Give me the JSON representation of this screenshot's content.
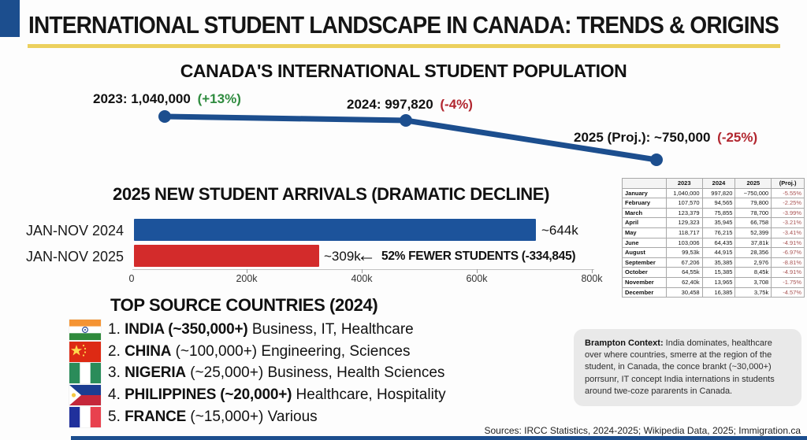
{
  "header": {
    "title": "INTERNATIONAL STUDENT LANDSCAPE IN CANADA: TRENDS & ORIGINS"
  },
  "colors": {
    "navy": "#1c4e8e",
    "bar_blue": "#1c539b",
    "bar_red": "#d32b2b",
    "green_change": "#2e8b3e",
    "red_change": "#b22730",
    "yellow_rule": "#ecd05e",
    "table_proj_text": "#a85252",
    "context_box_bg": "#e9e9e9"
  },
  "population_chart": {
    "title": "CANADA'S INTERNATIONAL STUDENT POPULATION",
    "points": [
      {
        "label": "2023: 1,040,000",
        "change": "(+13%)"
      },
      {
        "label": "2024: 997,820",
        "change": "(-4%)"
      },
      {
        "label": "2025 (Proj.): ~750,000",
        "change": "(-25%)"
      }
    ]
  },
  "arrivals_chart": {
    "title": "2025 NEW STUDENT ARRIVALS (DRAMATIC DECLINE)",
    "bars": [
      {
        "label": "JAN-NOV 2024",
        "value_label": "~644k"
      },
      {
        "label": "JAN-NOV 2025",
        "value_label": "~309k"
      }
    ],
    "arrow": "←",
    "annotation": "52% FEWER STUDENTS (-334,845)",
    "x_ticks": [
      "0",
      "200k",
      "400k",
      "600k",
      "800k"
    ]
  },
  "chart_data": [
    {
      "type": "line",
      "title": "CANADA'S INTERNATIONAL STUDENT POPULATION",
      "x": [
        "2023",
        "2024",
        "2025 (Proj.)"
      ],
      "values": [
        1040000,
        997820,
        750000
      ],
      "point_labels": [
        "2023: 1,040,000 (+13%)",
        "2024: 997,820 (-4%)",
        "2025 (Proj.): ~750,000 (-25%)"
      ],
      "annotations": [
        "+13%",
        "-4%",
        "-25%"
      ],
      "line_color": "#1c4e8e",
      "grid": false,
      "legend": "none"
    },
    {
      "type": "bar",
      "title": "2025 NEW STUDENT ARRIVALS (DRAMATIC DECLINE)",
      "categories": [
        "JAN-NOV 2024",
        "JAN-NOV 2025"
      ],
      "values": [
        644000,
        309000
      ],
      "value_labels": [
        "~644k",
        "~309k"
      ],
      "bar_colors": [
        "#1c539b",
        "#d32b2b"
      ],
      "orientation": "horizontal",
      "xlim": [
        0,
        800000
      ],
      "x_tick_labels": [
        "0",
        "200k",
        "400k",
        "600k",
        "800k"
      ],
      "annotation": "52% FEWER STUDENTS (-334,845)"
    },
    {
      "type": "table",
      "headers": [
        "",
        "2023",
        "2024",
        "2025",
        "(Proj.)"
      ],
      "rows": [
        [
          "January",
          "1,040,000",
          "997,820",
          "~750,000",
          "-5.55%"
        ],
        [
          "February",
          "107,570",
          "94,565",
          "79,800",
          "-2.25%"
        ],
        [
          "March",
          "123,379",
          "75,855",
          "78,700",
          "-3.99%"
        ],
        [
          "April",
          "129,323",
          "35,945",
          "66,758",
          "-3.21%"
        ],
        [
          "May",
          "118,717",
          "76,215",
          "52,399",
          "-3.41%"
        ],
        [
          "June",
          "103,006",
          "64,435",
          "37,81k",
          "-4.91%"
        ],
        [
          "August",
          "99,53k",
          "44,915",
          "28,356",
          "-6.97%"
        ],
        [
          "September",
          "67,206",
          "35,385",
          "2,976",
          "-8.81%"
        ],
        [
          "October",
          "64,55k",
          "15,385",
          "8,45k",
          "-4.91%"
        ],
        [
          "November",
          "62,40k",
          "13,965",
          "3,708",
          "-1.75%"
        ],
        [
          "December",
          "30,458",
          "16,385",
          "3,75k",
          "-4.57%"
        ]
      ]
    }
  ],
  "monthly_table": {
    "headers": [
      "",
      "2023",
      "2024",
      "2025",
      "(Proj.)"
    ],
    "rows": [
      {
        "month": "January",
        "y2023": "1,040,000",
        "y2024": "997,820",
        "y2025": "~750,000",
        "proj": "-5.55%"
      },
      {
        "month": "February",
        "y2023": "107,570",
        "y2024": "94,565",
        "y2025": "79,800",
        "proj": "-2.25%"
      },
      {
        "month": "March",
        "y2023": "123,379",
        "y2024": "75,855",
        "y2025": "78,700",
        "proj": "-3.99%"
      },
      {
        "month": "April",
        "y2023": "129,323",
        "y2024": "35,945",
        "y2025": "66,758",
        "proj": "-3.21%"
      },
      {
        "month": "May",
        "y2023": "118,717",
        "y2024": "76,215",
        "y2025": "52,399",
        "proj": "-3.41%"
      },
      {
        "month": "June",
        "y2023": "103,006",
        "y2024": "64,435",
        "y2025": "37,81k",
        "proj": "-4.91%"
      },
      {
        "month": "August",
        "y2023": "99,53k",
        "y2024": "44,915",
        "y2025": "28,356",
        "proj": "-6.97%"
      },
      {
        "month": "September",
        "y2023": "67,206",
        "y2024": "35,385",
        "y2025": "2,976",
        "proj": "-8.81%"
      },
      {
        "month": "October",
        "y2023": "64,55k",
        "y2024": "15,385",
        "y2025": "8,45k",
        "proj": "-4.91%"
      },
      {
        "month": "November",
        "y2023": "62,40k",
        "y2024": "13,965",
        "y2025": "3,708",
        "proj": "-1.75%"
      },
      {
        "month": "December",
        "y2023": "30,458",
        "y2024": "16,385",
        "y2025": "3,75k",
        "proj": "-4.57%"
      }
    ]
  },
  "top_countries": {
    "title": "TOP SOURCE COUNTRIES (2024)",
    "items": [
      {
        "rank": "1.",
        "bold": "INDIA (~350,000+)",
        "rest": "Business, IT, Healthcare",
        "flag": "india-flag"
      },
      {
        "rank": "2.",
        "bold": "CHINA",
        "rest": "(~100,000+) Engineering, Sciences",
        "flag": "china-flag"
      },
      {
        "rank": "3.",
        "bold": "NIGERIA",
        "rest": "(~25,000+) Business, Health Sciences",
        "flag": "nigeria-flag"
      },
      {
        "rank": "4.",
        "bold": "PHILIPPINES (~20,000+)",
        "rest": "Healthcare, Hospitality",
        "flag": "philippines-flag"
      },
      {
        "rank": "5.",
        "bold": "FRANCE",
        "rest": "(~15,000+) Various",
        "flag": "france-flag"
      }
    ]
  },
  "context_box": {
    "bold_label": "Brampton Context:",
    "text": " India dominates, healthcare over where countries, smerre at the region of the student, in Canada, the conce brankt (~30,000+) porrsunr, IT concept India internations in students around twe-coze pararents in Canada."
  },
  "footer": {
    "sources": "Sources: IRCC Statistics, 2024-2025; Wikipedia Data, 2025; Immigration.ca"
  }
}
